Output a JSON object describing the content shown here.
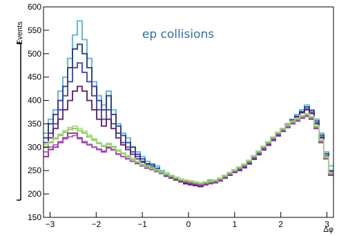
{
  "chart_data": {
    "type": "line",
    "step": true,
    "title": "",
    "annotation": "ep collisions",
    "annotation_color": "#2a6ebd",
    "xlabel": "Δφ",
    "ylabel": "Events",
    "xlim": [
      -3.14159,
      3.14159
    ],
    "ylim": [
      150,
      600
    ],
    "x_ticks": [
      -3,
      -2,
      -1,
      0,
      1,
      2,
      3
    ],
    "y_ticks": [
      150,
      200,
      250,
      300,
      350,
      400,
      450,
      500,
      550,
      600
    ],
    "bins": 60,
    "grid": false,
    "legend": "none",
    "series": [
      {
        "color": "#4fb3e0",
        "values": [
          330,
          360,
          380,
          420,
          450,
          490,
          540,
          570,
          530,
          490,
          440,
          410,
          390,
          420,
          380,
          350,
          330,
          320,
          300,
          290,
          280,
          270,
          265,
          260,
          250,
          245,
          240,
          235,
          230,
          228,
          225,
          222,
          220,
          225,
          230,
          228,
          232,
          240,
          245,
          250,
          255,
          260,
          270,
          280,
          290,
          300,
          310,
          320,
          330,
          340,
          350,
          360,
          370,
          380,
          390,
          380,
          360,
          330,
          290,
          260
        ]
      },
      {
        "color": "#1e3a8a",
        "values": [
          320,
          350,
          370,
          400,
          430,
          470,
          510,
          520,
          500,
          470,
          430,
          400,
          380,
          410,
          370,
          345,
          325,
          310,
          300,
          285,
          275,
          265,
          262,
          255,
          248,
          240,
          236,
          232,
          228,
          224,
          222,
          220,
          218,
          222,
          228,
          226,
          230,
          236,
          242,
          248,
          252,
          258,
          266,
          276,
          286,
          296,
          306,
          316,
          326,
          336,
          346,
          356,
          366,
          376,
          386,
          378,
          356,
          326,
          286,
          250
        ]
      },
      {
        "color": "#3a3fb0",
        "values": [
          310,
          330,
          350,
          380,
          410,
          440,
          470,
          480,
          460,
          440,
          410,
          380,
          360,
          380,
          350,
          330,
          310,
          300,
          290,
          280,
          270,
          262,
          258,
          252,
          246,
          240,
          235,
          230,
          226,
          222,
          220,
          218,
          216,
          220,
          224,
          224,
          228,
          234,
          240,
          246,
          250,
          256,
          264,
          274,
          284,
          294,
          304,
          314,
          324,
          334,
          344,
          354,
          364,
          374,
          382,
          374,
          352,
          322,
          282,
          248
        ]
      },
      {
        "color": "#5a1a6a",
        "values": [
          300,
          320,
          340,
          360,
          380,
          400,
          420,
          430,
          420,
          400,
          380,
          360,
          345,
          360,
          340,
          320,
          305,
          295,
          285,
          275,
          268,
          260,
          256,
          250,
          244,
          238,
          234,
          230,
          226,
          222,
          220,
          218,
          216,
          220,
          224,
          226,
          230,
          236,
          242,
          248,
          254,
          260,
          268,
          278,
          288,
          298,
          308,
          318,
          328,
          338,
          348,
          358,
          366,
          374,
          380,
          372,
          350,
          320,
          280,
          246
        ]
      },
      {
        "color": "#8b1f8f",
        "values": [
          280,
          295,
          300,
          310,
          320,
          330,
          330,
          320,
          310,
          305,
          300,
          295,
          290,
          300,
          295,
          285,
          280,
          275,
          270,
          265,
          260,
          255,
          252,
          248,
          244,
          240,
          236,
          232,
          228,
          225,
          222,
          220,
          218,
          220,
          222,
          224,
          228,
          234,
          240,
          246,
          252,
          258,
          266,
          276,
          286,
          296,
          306,
          316,
          326,
          334,
          342,
          350,
          356,
          362,
          366,
          360,
          340,
          310,
          275,
          240
        ]
      },
      {
        "color": "#b04fc2",
        "values": [
          290,
          300,
          305,
          312,
          318,
          322,
          325,
          318,
          312,
          306,
          300,
          296,
          292,
          298,
          294,
          286,
          280,
          276,
          270,
          266,
          260,
          256,
          252,
          248,
          244,
          240,
          236,
          232,
          228,
          226,
          224,
          222,
          220,
          222,
          224,
          226,
          230,
          236,
          242,
          248,
          254,
          260,
          268,
          278,
          288,
          298,
          308,
          318,
          328,
          336,
          344,
          352,
          358,
          364,
          368,
          362,
          342,
          312,
          276,
          242
        ]
      },
      {
        "color": "#7dc242",
        "values": [
          300,
          310,
          318,
          325,
          332,
          338,
          340,
          335,
          330,
          322,
          315,
          308,
          302,
          306,
          300,
          292,
          286,
          280,
          274,
          268,
          262,
          258,
          254,
          250,
          246,
          242,
          238,
          234,
          230,
          228,
          226,
          224,
          222,
          224,
          226,
          228,
          232,
          238,
          244,
          250,
          256,
          262,
          270,
          280,
          290,
          300,
          310,
          320,
          330,
          338,
          346,
          354,
          360,
          366,
          370,
          364,
          344,
          314,
          278,
          244
        ]
      },
      {
        "color": "#9fd87c",
        "values": [
          305,
          312,
          320,
          328,
          335,
          342,
          345,
          340,
          334,
          326,
          318,
          310,
          304,
          308,
          302,
          294,
          288,
          282,
          276,
          270,
          264,
          260,
          256,
          252,
          248,
          244,
          240,
          236,
          232,
          230,
          228,
          226,
          224,
          226,
          228,
          230,
          234,
          240,
          246,
          252,
          258,
          264,
          272,
          282,
          292,
          302,
          312,
          322,
          332,
          340,
          348,
          356,
          362,
          368,
          372,
          366,
          346,
          316,
          280,
          246
        ]
      }
    ]
  }
}
